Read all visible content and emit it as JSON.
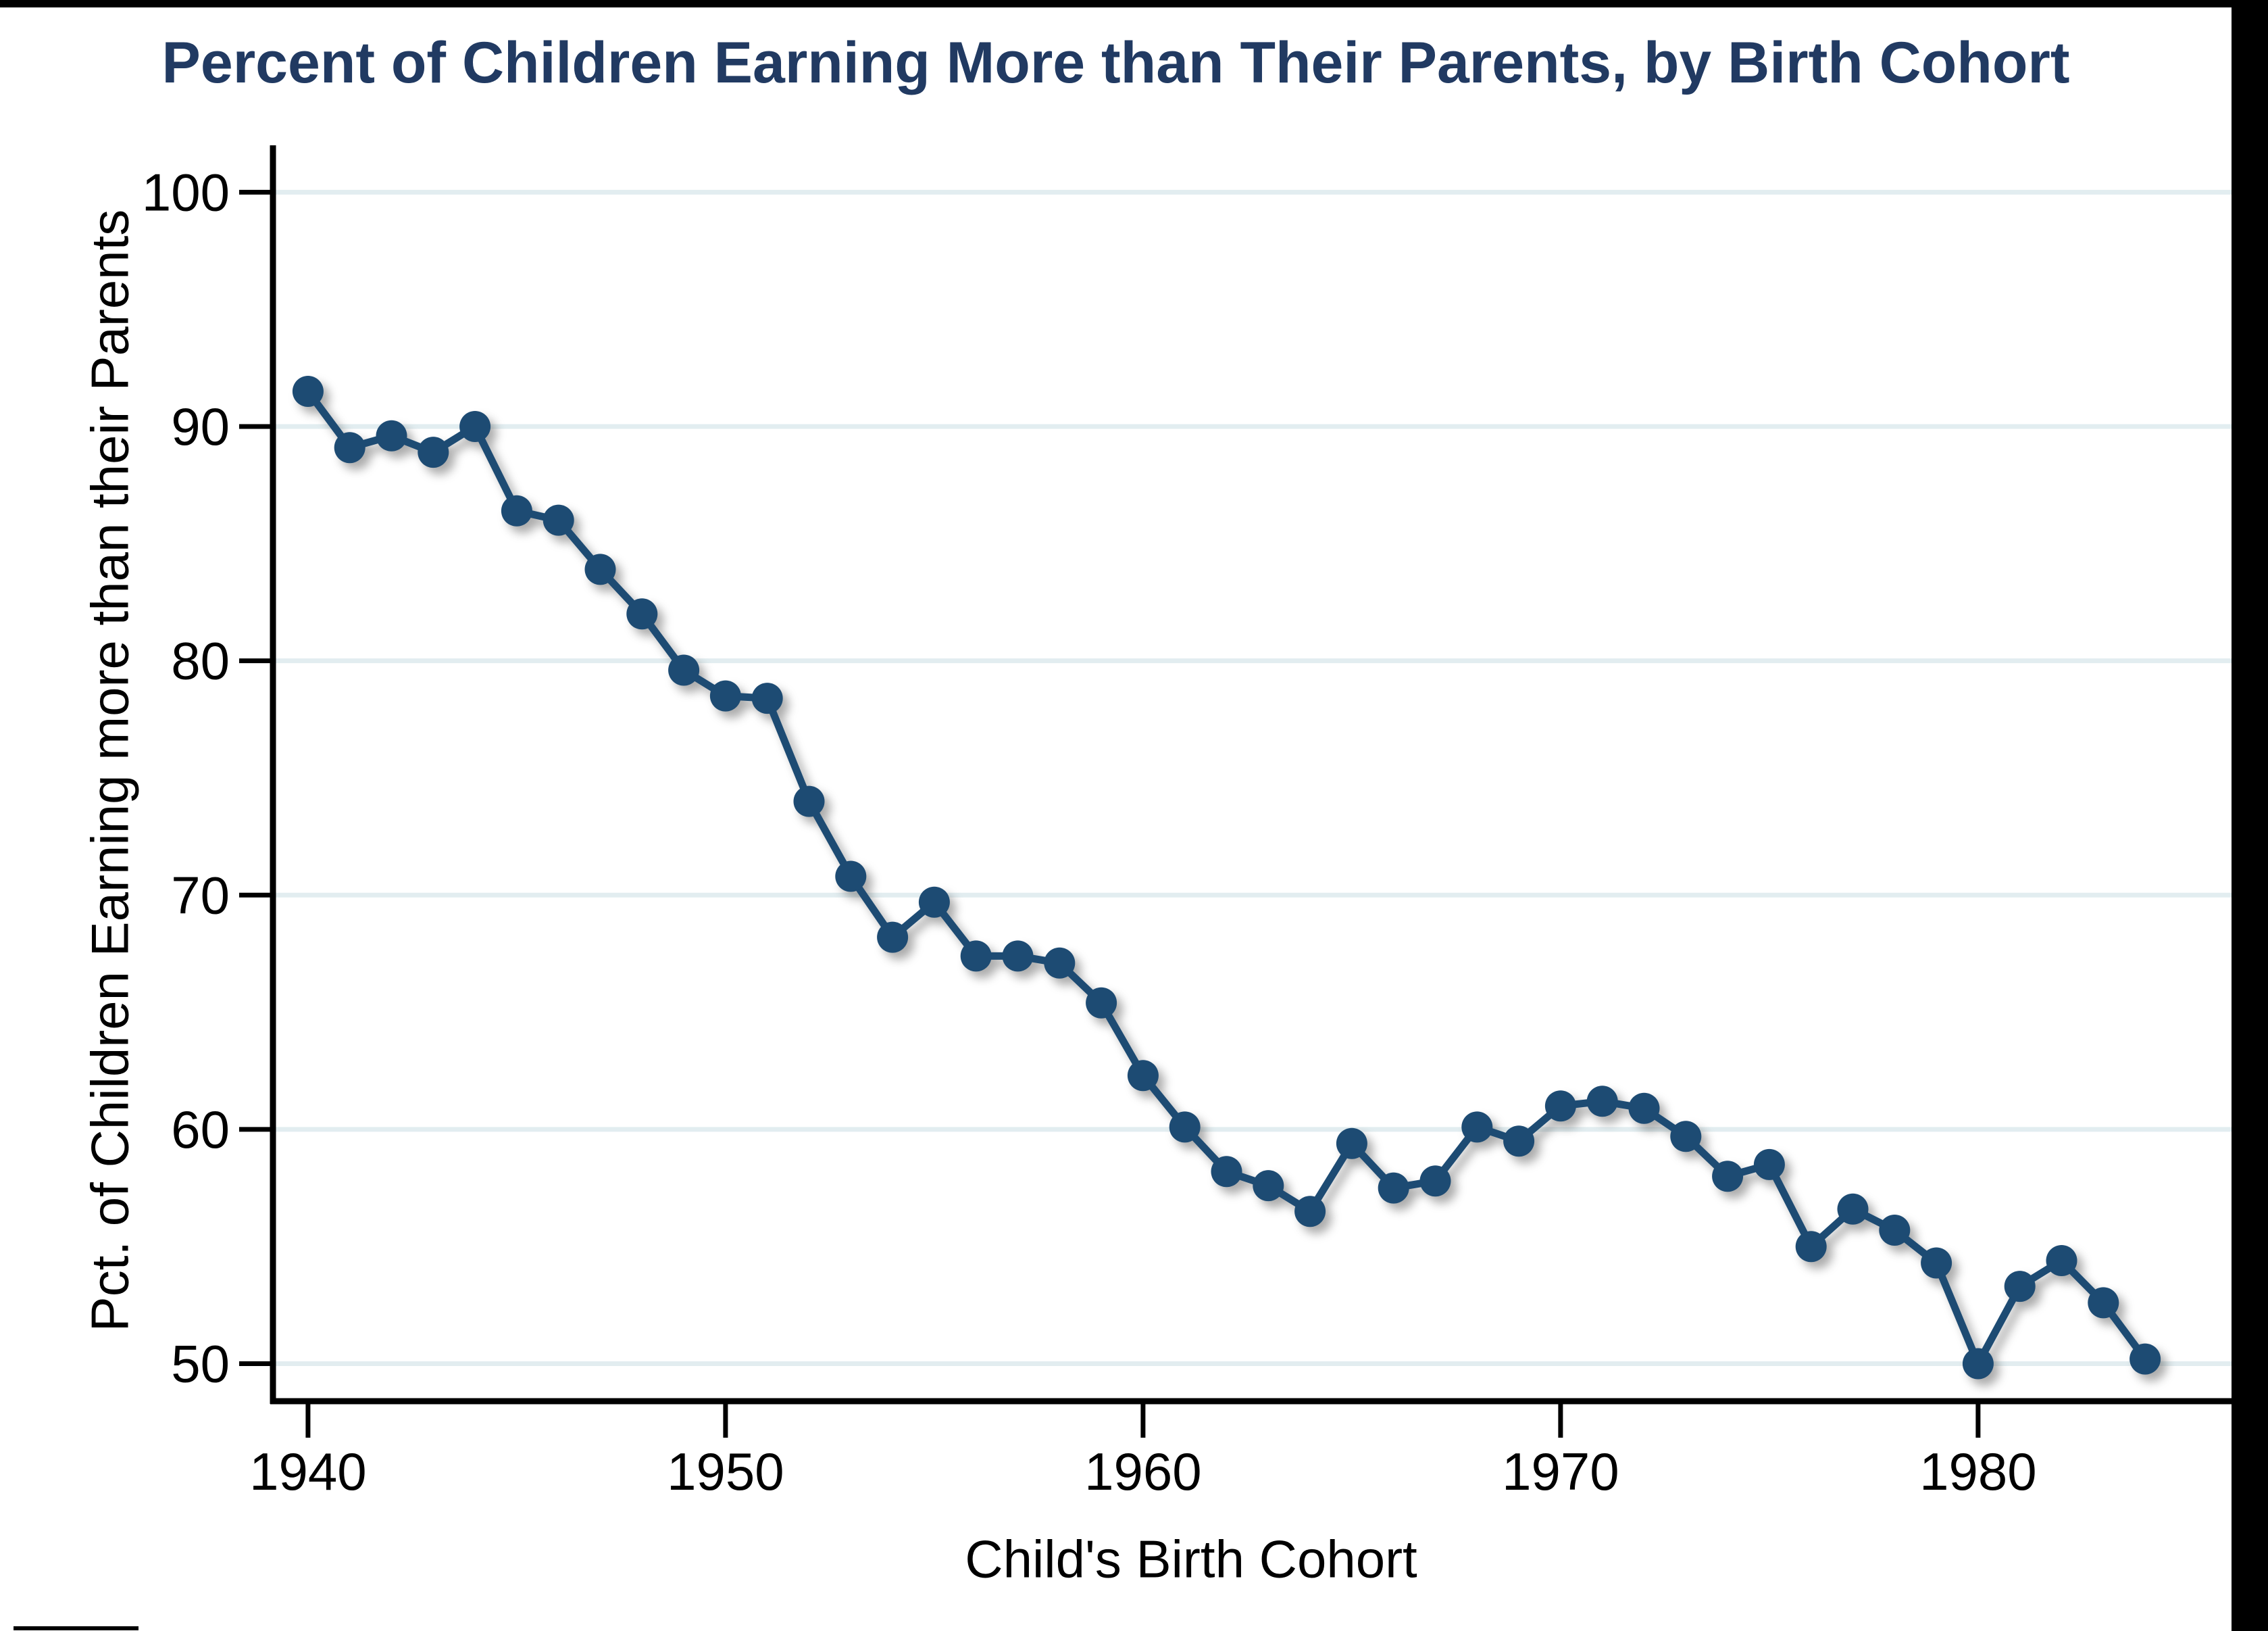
{
  "colors": {
    "title": "#213a62",
    "series": "#1d4b73",
    "grid": "#e2edf0",
    "axis": "#000000",
    "background": "#ffffff",
    "border_bands": "#000000"
  },
  "chart_data": {
    "type": "line",
    "title": "Percent of Children Earning More than Their Parents, by Birth Cohort",
    "xlabel": "Child's Birth Cohort",
    "ylabel": "Pct. of Children Earning more than their Parents",
    "x": [
      1940,
      1941,
      1942,
      1943,
      1944,
      1945,
      1946,
      1947,
      1948,
      1949,
      1950,
      1951,
      1952,
      1953,
      1954,
      1955,
      1956,
      1957,
      1958,
      1959,
      1960,
      1961,
      1962,
      1963,
      1964,
      1965,
      1966,
      1967,
      1968,
      1969,
      1970,
      1971,
      1972,
      1973,
      1974,
      1975,
      1976,
      1977,
      1978,
      1979,
      1980,
      1981,
      1982,
      1983,
      1984
    ],
    "values": [
      91.5,
      89.1,
      89.6,
      88.9,
      90.0,
      86.4,
      86.0,
      83.9,
      82.0,
      79.6,
      78.5,
      78.4,
      74.0,
      70.8,
      68.2,
      69.7,
      67.4,
      67.4,
      67.1,
      65.4,
      62.3,
      60.1,
      58.2,
      57.6,
      56.5,
      59.4,
      57.5,
      57.8,
      60.1,
      59.5,
      61.0,
      61.2,
      60.9,
      59.7,
      58.0,
      58.5,
      55.0,
      56.6,
      55.7,
      54.3,
      50.0,
      53.3,
      54.4,
      52.6,
      50.2
    ],
    "x_ticks": [
      1940,
      1950,
      1960,
      1970,
      1980
    ],
    "y_ticks": [
      100,
      90,
      80,
      70,
      60,
      50
    ],
    "xlim": [
      1939.16,
      1986.07
    ],
    "ylim": [
      48.4,
      102.0
    ],
    "grid": "horizontal",
    "legend": "none",
    "marker": "circle"
  }
}
